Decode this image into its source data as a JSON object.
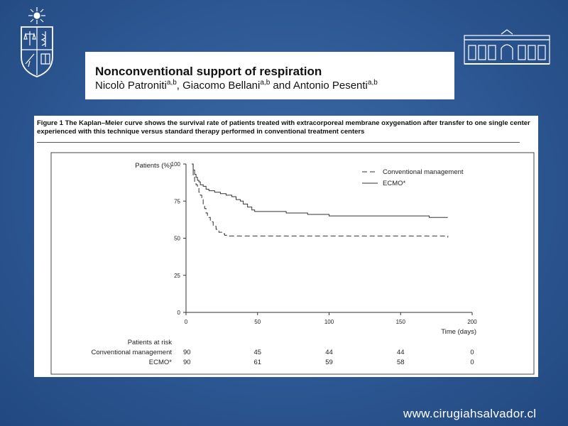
{
  "slide": {
    "title": "Nonconventional support of respiration",
    "authors": [
      {
        "name": "Nicolò Patroniti",
        "affil": "a,b",
        "sep": ", "
      },
      {
        "name": "Giacomo Bellani",
        "affil": "a,b",
        "sep": " and "
      },
      {
        "name": "Antonio Pesenti",
        "affil": "a,b",
        "sep": ""
      }
    ],
    "footer_url": "www.cirugiahsalvador.cl"
  },
  "figure": {
    "caption": "Figure 1 The Kaplan–Meier curve shows the survival rate of patients treated with extracorporeal membrane oxygenation after transfer to one single center experienced with this technique versus standard therapy performed in conventional treatment centers"
  },
  "chart_data": {
    "type": "line",
    "title": "",
    "ylabel": "Patients (%)",
    "xlabel": "Time (days)",
    "xlim": [
      0,
      200
    ],
    "ylim": [
      0,
      100
    ],
    "x_ticks": [
      0,
      50,
      100,
      150,
      200
    ],
    "y_ticks": [
      0,
      25,
      50,
      75,
      100
    ],
    "grid": false,
    "legend_position": "top-right",
    "series": [
      {
        "name": "Conventional management",
        "style": "dashed",
        "points": [
          [
            4,
            100
          ],
          [
            5,
            92
          ],
          [
            6,
            88
          ],
          [
            7,
            86
          ],
          [
            8,
            84
          ],
          [
            9,
            81
          ],
          [
            10,
            79
          ],
          [
            11,
            76
          ],
          [
            12,
            73
          ],
          [
            13,
            70
          ],
          [
            14,
            67
          ],
          [
            15,
            64
          ],
          [
            17,
            61
          ],
          [
            19,
            58
          ],
          [
            21,
            56
          ],
          [
            23,
            54
          ],
          [
            25,
            53
          ],
          [
            27,
            52
          ],
          [
            30,
            51.5
          ],
          [
            35,
            51.5
          ],
          [
            60,
            51.5
          ],
          [
            100,
            51.5
          ],
          [
            150,
            51.5
          ],
          [
            183,
            51.5
          ],
          [
            183,
            50.5
          ]
        ]
      },
      {
        "name": "ECMO*",
        "style": "solid",
        "points": [
          [
            4,
            100
          ],
          [
            5,
            96
          ],
          [
            6,
            93
          ],
          [
            7,
            91
          ],
          [
            8,
            89
          ],
          [
            9,
            88
          ],
          [
            10,
            86
          ],
          [
            12,
            85
          ],
          [
            14,
            83
          ],
          [
            16,
            82
          ],
          [
            20,
            81
          ],
          [
            24,
            80
          ],
          [
            28,
            79
          ],
          [
            32,
            78
          ],
          [
            35,
            76
          ],
          [
            38,
            75
          ],
          [
            40,
            73
          ],
          [
            43,
            71
          ],
          [
            46,
            69
          ],
          [
            48,
            68
          ],
          [
            60,
            68
          ],
          [
            70,
            67
          ],
          [
            85,
            66
          ],
          [
            100,
            65
          ],
          [
            125,
            65
          ],
          [
            140,
            65
          ],
          [
            165,
            65
          ],
          [
            170,
            64
          ],
          [
            183,
            64
          ]
        ]
      }
    ],
    "risk_table": {
      "title": "Patients at risk",
      "times": [
        0,
        50,
        100,
        150,
        200
      ],
      "rows": [
        {
          "label": "Conventional management",
          "values": [
            "90",
            "45",
            "44",
            "44",
            "0"
          ]
        },
        {
          "label": "ECMO*",
          "values": [
            "90",
            "61",
            "59",
            "58",
            "0"
          ]
        }
      ]
    }
  }
}
